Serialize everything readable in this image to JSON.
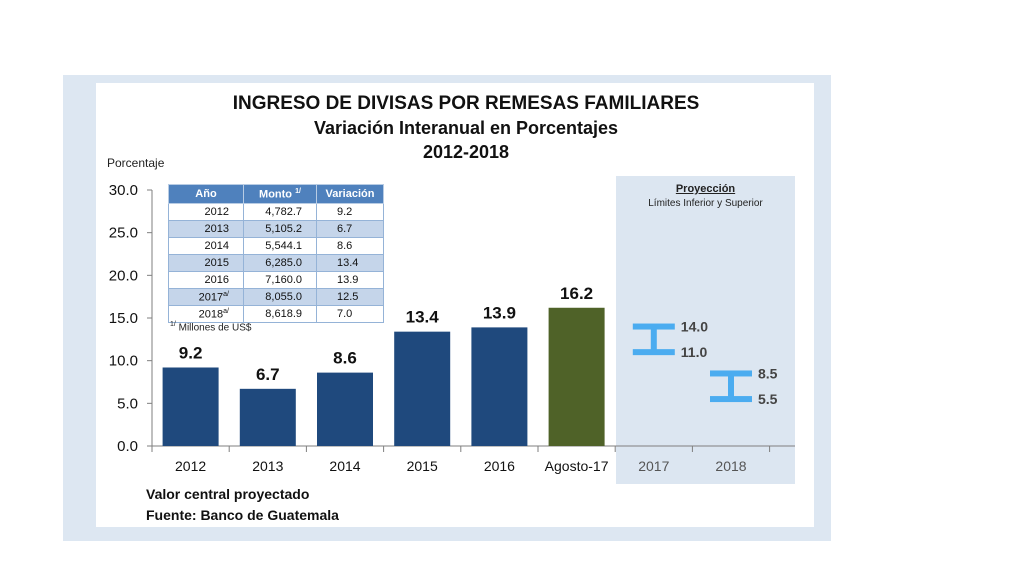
{
  "chart_data": {
    "type": "bar",
    "title": "INGRESO DE DIVISAS POR REMESAS FAMILIARES",
    "subtitle": "Variación Interanual en Porcentajes",
    "period": "2012-2018",
    "ylabel": "Porcentaje",
    "ylim": [
      0,
      30
    ],
    "yticks": [
      "0.0",
      "5.0",
      "10.0",
      "15.0",
      "20.0",
      "25.0",
      "30.0"
    ],
    "categories": [
      "2012",
      "2013",
      "2014",
      "2015",
      "2016",
      "Agosto-17",
      "2017",
      "2018"
    ],
    "bars": [
      {
        "category": "2012",
        "value": 9.2,
        "label": "9.2",
        "color": "#1f497d"
      },
      {
        "category": "2013",
        "value": 6.7,
        "label": "6.7",
        "color": "#1f497d"
      },
      {
        "category": "2014",
        "value": 8.6,
        "label": "8.6",
        "color": "#1f497d"
      },
      {
        "category": "2015",
        "value": 13.4,
        "label": "13.4",
        "color": "#1f497d"
      },
      {
        "category": "2016",
        "value": 13.9,
        "label": "13.9",
        "color": "#1f497d"
      },
      {
        "category": "Agosto-17",
        "value": 16.2,
        "label": "16.2",
        "color": "#4f6228"
      }
    ],
    "projections": [
      {
        "category": "2017",
        "low": 11.0,
        "high": 14.0,
        "low_label": "11.0",
        "high_label": "14.0",
        "color": "#4bacf0"
      },
      {
        "category": "2018",
        "low": 5.5,
        "high": 8.5,
        "low_label": "5.5",
        "high_label": "8.5",
        "color": "#4bacf0"
      }
    ],
    "projection_box": {
      "title": "Proyección",
      "subtitle": "Límites Inferior y Superior"
    }
  },
  "table": {
    "headers": [
      "Año",
      "Monto",
      "Variación"
    ],
    "monto_sup": "1/",
    "rows": [
      {
        "year": "2012",
        "sup": "",
        "monto": "4,782.7",
        "var": "9.2"
      },
      {
        "year": "2013",
        "sup": "",
        "monto": "5,105.2",
        "var": "6.7"
      },
      {
        "year": "2014",
        "sup": "",
        "monto": "5,544.1",
        "var": "8.6"
      },
      {
        "year": "2015",
        "sup": "",
        "monto": "6,285.0",
        "var": "13.4"
      },
      {
        "year": "2016",
        "sup": "",
        "monto": "7,160.0",
        "var": "13.9"
      },
      {
        "year": "2017",
        "sup": "a/",
        "monto": "8,055.0",
        "var": "12.5"
      },
      {
        "year": "2018",
        "sup": "a/",
        "monto": "8,618.9",
        "var": "7.0"
      }
    ],
    "footnote_sup": "1/",
    "footnote": "Millones de US$"
  },
  "notes": {
    "central": "Valor central proyectado",
    "source": "Fuente: Banco de Guatemala"
  }
}
